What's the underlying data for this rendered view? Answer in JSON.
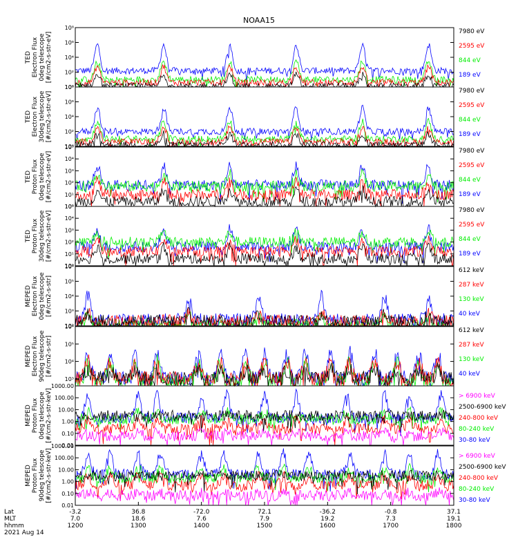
{
  "title": "NOAA15",
  "colors": {
    "black": "#000000",
    "red": "#ff0000",
    "green": "#00ee00",
    "blue": "#0000ff",
    "magenta": "#ff00ff"
  },
  "chart_data": {
    "type": "line",
    "log_scale": true,
    "x_axis": {
      "rows": [
        {
          "label": "Lat",
          "values": [
            "-3.2",
            "36.8",
            "-72.0",
            "72.1",
            "-36.2",
            "-0.8",
            "37.1"
          ]
        },
        {
          "label": "MLT",
          "values": [
            "7.0",
            "18.6",
            "7.6",
            "7.9",
            "19.2",
            "7.3",
            "19.1"
          ]
        },
        {
          "label": "hhmm",
          "values": [
            "1200",
            "1300",
            "1400",
            "1500",
            "1600",
            "1700",
            "1800"
          ]
        }
      ],
      "date": "2021 Aug 14",
      "range": [
        "1200",
        "1800"
      ]
    },
    "panels": [
      {
        "ylabel": [
          "TED",
          "Electron Flux",
          "0deg telescope",
          "[#/cm2-s-str-eV]"
        ],
        "ticks": [
          "10⁰",
          "10²",
          "10⁴",
          "10⁶",
          "10⁸"
        ],
        "tick_exp": [
          0,
          2,
          4,
          6,
          8
        ],
        "ylim_exp": [
          0,
          8
        ],
        "legend": [
          {
            "text": "7980 eV",
            "color": "black"
          },
          {
            "text": "2595 eV",
            "color": "red"
          },
          {
            "text": "844 eV",
            "color": "green"
          },
          {
            "text": "189 eV",
            "color": "blue"
          }
        ],
        "series": [
          {
            "name": "189 eV",
            "color": "blue",
            "base": 2.2,
            "peak": 3.5
          },
          {
            "name": "844 eV",
            "color": "green",
            "base": 1.0,
            "peak": 2.5
          },
          {
            "name": "2595 eV",
            "color": "red",
            "base": 0.6,
            "peak": 2.2
          },
          {
            "name": "7980 eV",
            "color": "black",
            "base": 0.1,
            "peak": 1.6
          }
        ],
        "peaks": [
          0.35,
          1.4,
          2.45,
          3.5,
          4.55,
          5.6
        ]
      },
      {
        "ylabel": [
          "TED",
          "Electron Flux",
          "30deg telescope",
          "[#/cm2-s-str-eV]"
        ],
        "ticks": [
          "10⁰",
          "10²",
          "10⁴",
          "10⁶",
          "10⁸"
        ],
        "tick_exp": [
          0,
          2,
          4,
          6,
          8
        ],
        "ylim_exp": [
          0,
          8
        ],
        "legend": [
          {
            "text": "7980 eV",
            "color": "black"
          },
          {
            "text": "2595 eV",
            "color": "red"
          },
          {
            "text": "844 eV",
            "color": "green"
          },
          {
            "text": "189 eV",
            "color": "blue"
          }
        ],
        "series": [
          {
            "name": "189 eV",
            "color": "blue",
            "base": 2.0,
            "peak": 3.2
          },
          {
            "name": "844 eV",
            "color": "green",
            "base": 1.0,
            "peak": 2.4
          },
          {
            "name": "2595 eV",
            "color": "red",
            "base": 0.6,
            "peak": 2.0
          },
          {
            "name": "7980 eV",
            "color": "black",
            "base": 0.2,
            "peak": 1.5
          }
        ],
        "peaks": [
          0.35,
          1.4,
          2.45,
          3.5,
          4.55,
          5.6
        ]
      },
      {
        "ylabel": [
          "TED",
          "Proton Flux",
          "0deg telescope",
          "[#/cm2-s-str-eV]"
        ],
        "ticks": [
          "10⁰",
          "10¹",
          "10²",
          "10³",
          "10⁴",
          "10⁵"
        ],
        "tick_exp": [
          0,
          1,
          2,
          3,
          4,
          5
        ],
        "ylim_exp": [
          0,
          5
        ],
        "legend": [
          {
            "text": "7980 eV",
            "color": "black"
          },
          {
            "text": "2595 eV",
            "color": "red"
          },
          {
            "text": "844 eV",
            "color": "green"
          },
          {
            "text": "189 eV",
            "color": "blue"
          }
        ],
        "series": [
          {
            "name": "189 eV",
            "color": "blue",
            "base": 1.8,
            "peak": 1.6
          },
          {
            "name": "844 eV",
            "color": "green",
            "base": 1.7,
            "peak": 1.0
          },
          {
            "name": "2595 eV",
            "color": "red",
            "base": 1.0,
            "peak": 1.2
          },
          {
            "name": "7980 eV",
            "color": "black",
            "base": 0.4,
            "peak": 1.0
          }
        ],
        "peaks": [
          0.35,
          1.4,
          2.45,
          3.5,
          4.55,
          5.6
        ]
      },
      {
        "ylabel": [
          "TED",
          "Proton Flux",
          "30deg telescope",
          "[#/cm2-s-str-eV]"
        ],
        "ticks": [
          "10⁰",
          "10¹",
          "10²",
          "10³",
          "10⁴",
          "10⁵"
        ],
        "tick_exp": [
          0,
          1,
          2,
          3,
          4,
          5
        ],
        "ylim_exp": [
          0,
          5
        ],
        "legend": [
          {
            "text": "7980 eV",
            "color": "black"
          },
          {
            "text": "2595 eV",
            "color": "red"
          },
          {
            "text": "844 eV",
            "color": "green"
          },
          {
            "text": "189 eV",
            "color": "blue"
          }
        ],
        "series": [
          {
            "name": "189 eV",
            "color": "blue",
            "base": 1.6,
            "peak": 1.5
          },
          {
            "name": "844 eV",
            "color": "green",
            "base": 2.0,
            "peak": 0.8
          },
          {
            "name": "2595 eV",
            "color": "red",
            "base": 1.2,
            "peak": 1.0
          },
          {
            "name": "7980 eV",
            "color": "black",
            "base": 0.6,
            "peak": 1.0
          }
        ],
        "peaks": [
          0.35,
          1.4,
          2.45,
          3.5,
          4.55,
          5.6
        ]
      },
      {
        "ylabel": [
          "MEPED",
          "Electron Flux",
          "0deg telescope",
          "[#/cm2-s-str]"
        ],
        "ticks": [
          "10²",
          "10³",
          "10⁴",
          "10⁵",
          "10⁶"
        ],
        "tick_exp": [
          2,
          3,
          4,
          5,
          6
        ],
        "ylim_exp": [
          2,
          6
        ],
        "legend": [
          {
            "text": "612 keV",
            "color": "black"
          },
          {
            "text": "287 keV",
            "color": "red"
          },
          {
            "text": "130 keV",
            "color": "green"
          },
          {
            "text": "40 keV",
            "color": "blue"
          }
        ],
        "series": [
          {
            "name": "40 keV",
            "color": "blue",
            "base": 2.4,
            "peak": 1.6
          },
          {
            "name": "130 keV",
            "color": "green",
            "base": 2.0,
            "peak": 0.6
          },
          {
            "name": "287 keV",
            "color": "red",
            "base": 2.3,
            "peak": 0.6
          },
          {
            "name": "612 keV",
            "color": "black",
            "base": 2.3,
            "peak": 0.5
          }
        ],
        "peaks": [
          0.2,
          1.8,
          2.9,
          3.9,
          4.9,
          5.6
        ]
      },
      {
        "ylabel": [
          "MEPED",
          "Electron Flux",
          "90deg telescope",
          "[#/cm2-s-str]"
        ],
        "ticks": [
          "10³",
          "10⁴",
          "10⁵",
          "10⁶"
        ],
        "tick_exp": [
          3,
          4,
          5,
          6
        ],
        "ylim_exp": [
          2.6,
          6
        ],
        "legend": [
          {
            "text": "612 keV",
            "color": "black"
          },
          {
            "text": "287 keV",
            "color": "red"
          },
          {
            "text": "130 keV",
            "color": "green"
          },
          {
            "text": "40 keV",
            "color": "blue"
          }
        ],
        "series": [
          {
            "name": "40 keV",
            "color": "blue",
            "base": 3.0,
            "peak": 1.5
          },
          {
            "name": "130 keV",
            "color": "green",
            "base": 2.8,
            "peak": 1.2
          },
          {
            "name": "287 keV",
            "color": "red",
            "base": 3.0,
            "peak": 1.0
          },
          {
            "name": "612 keV",
            "color": "black",
            "base": 3.0,
            "peak": 0.5
          }
        ],
        "peaks": [
          0.2,
          0.55,
          0.95,
          1.3,
          1.95,
          2.3,
          2.7,
          3.0,
          3.35,
          3.65,
          4.05,
          4.35,
          4.75,
          5.1,
          5.45,
          5.75
        ]
      },
      {
        "ylabel": [
          "MEPED",
          "Proton Flux",
          "0deg telescope",
          "[#/cm2-s-str-keV]"
        ],
        "ticks": [
          "0.01",
          "0.10",
          "1.00",
          "10.00",
          "100.00",
          "1000.00"
        ],
        "tick_exp": [
          -2,
          -1,
          0,
          1,
          2,
          3
        ],
        "ylim_exp": [
          -2,
          3
        ],
        "legend": [
          {
            "text": "> 6900 keV",
            "color": "magenta"
          },
          {
            "text": "2500-6900 keV",
            "color": "black"
          },
          {
            "text": "240-800 keV",
            "color": "red"
          },
          {
            "text": "80-240 keV",
            "color": "green"
          },
          {
            "text": "30-80 keV",
            "color": "blue"
          }
        ],
        "series": [
          {
            "name": "30-80 keV",
            "color": "blue",
            "base": 0.3,
            "peak": 2.0
          },
          {
            "name": "80-240 keV",
            "color": "green",
            "base": 0.2,
            "peak": 0.6
          },
          {
            "name": "240-800 keV",
            "color": "red",
            "base": -0.6,
            "peak": 0.8
          },
          {
            "name": "2500-6900 keV",
            "color": "black",
            "base": 0.5,
            "peak": 0.0
          },
          {
            "name": "> 6900 keV",
            "color": "magenta",
            "base": -1.2,
            "peak": 0.3
          }
        ],
        "peaks": [
          0.2,
          1.0,
          1.3,
          2.0,
          2.4,
          3.0,
          3.5,
          4.3,
          4.9,
          5.3,
          5.8
        ]
      },
      {
        "ylabel": [
          "MEPED",
          "Proton Flux",
          "90deg telescope",
          "[#/cm2-s-str-keV]"
        ],
        "ticks": [
          "0.01",
          "0.10",
          "1.00",
          "10.00",
          "100.00",
          "1000.00"
        ],
        "tick_exp": [
          -2,
          -1,
          0,
          1,
          2,
          3
        ],
        "ylim_exp": [
          -2,
          3
        ],
        "legend": [
          {
            "text": "> 6900 keV",
            "color": "magenta"
          },
          {
            "text": "2500-6900 keV",
            "color": "black"
          },
          {
            "text": "240-800 keV",
            "color": "red"
          },
          {
            "text": "80-240 keV",
            "color": "green"
          },
          {
            "text": "30-80 keV",
            "color": "blue"
          }
        ],
        "series": [
          {
            "name": "30-80 keV",
            "color": "blue",
            "base": 0.6,
            "peak": 1.8
          },
          {
            "name": "80-240 keV",
            "color": "green",
            "base": 0.3,
            "peak": 0.8
          },
          {
            "name": "240-800 keV",
            "color": "red",
            "base": -0.3,
            "peak": 0.8
          },
          {
            "name": "2500-6900 keV",
            "color": "black",
            "base": 0.5,
            "peak": 0.0
          },
          {
            "name": "> 6900 keV",
            "color": "magenta",
            "base": -1.2,
            "peak": 0.3
          }
        ],
        "peaks": [
          0.2,
          0.55,
          1.0,
          1.35,
          2.0,
          2.35,
          2.9,
          3.3,
          3.7,
          4.35,
          4.9,
          5.3,
          5.75
        ]
      }
    ]
  }
}
